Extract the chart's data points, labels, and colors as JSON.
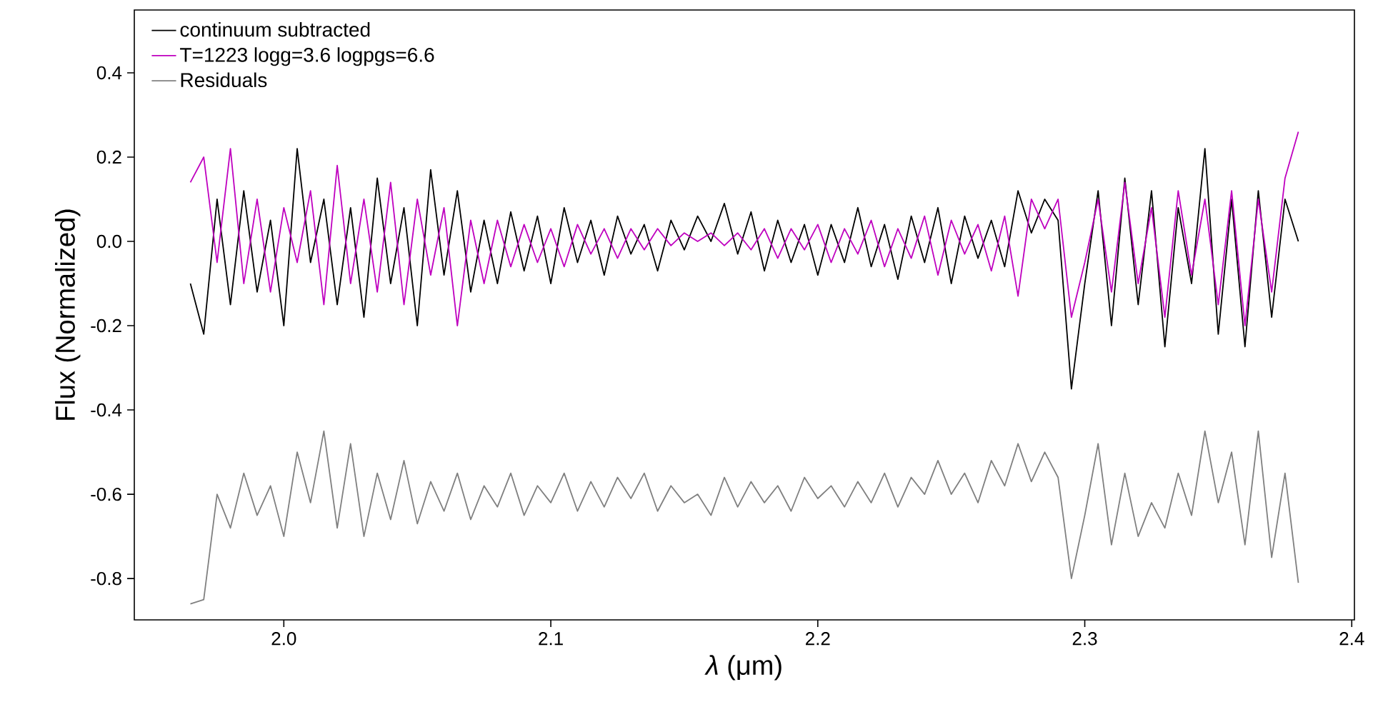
{
  "chart_data": {
    "type": "line",
    "xlabel": "*λ* (μm)",
    "ylabel": "Flux (Normalized)",
    "xlim": [
      1.944,
      2.401
    ],
    "ylim": [
      -0.898,
      0.549
    ],
    "xticks": [
      {
        "value": 2.0,
        "label": "2.0"
      },
      2.1,
      2.2,
      2.3,
      2.4
    ],
    "yticks": [
      -0.8,
      -0.6,
      -0.4,
      -0.2,
      {
        "value": 0.0,
        "label": "0.0"
      },
      0.2,
      0.4
    ],
    "legend": "top left",
    "x": [
      1.965,
      1.97,
      1.975,
      1.98,
      1.985,
      1.99,
      1.995,
      2.0,
      2.005,
      2.01,
      2.015,
      2.02,
      2.025,
      2.03,
      2.035,
      2.04,
      2.045,
      2.05,
      2.055,
      2.06,
      2.065,
      2.07,
      2.075,
      2.08,
      2.085,
      2.09,
      2.095,
      2.1,
      2.105,
      2.11,
      2.115,
      2.12,
      2.125,
      2.13,
      2.135,
      2.14,
      2.145,
      2.15,
      2.155,
      2.16,
      2.165,
      2.17,
      2.175,
      2.18,
      2.185,
      2.19,
      2.195,
      2.2,
      2.205,
      2.21,
      2.215,
      2.22,
      2.225,
      2.23,
      2.235,
      2.24,
      2.245,
      2.25,
      2.255,
      2.26,
      2.265,
      2.27,
      2.275,
      2.28,
      2.285,
      2.29,
      2.295,
      2.3,
      2.305,
      2.31,
      2.315,
      2.32,
      2.325,
      2.33,
      2.335,
      2.34,
      2.345,
      2.35,
      2.355,
      2.36,
      2.365,
      2.37,
      2.375,
      2.38
    ],
    "series": [
      {
        "name": "continuum subtracted",
        "color": "#000000",
        "values": [
          -0.1,
          -0.22,
          0.1,
          -0.15,
          0.12,
          -0.12,
          0.05,
          -0.2,
          0.22,
          -0.05,
          0.1,
          -0.15,
          0.08,
          -0.18,
          0.15,
          -0.1,
          0.08,
          -0.2,
          0.17,
          -0.08,
          0.12,
          -0.12,
          0.05,
          -0.1,
          0.07,
          -0.07,
          0.06,
          -0.1,
          0.08,
          -0.05,
          0.05,
          -0.08,
          0.06,
          -0.03,
          0.04,
          -0.07,
          0.05,
          -0.02,
          0.06,
          0.0,
          0.09,
          -0.03,
          0.07,
          -0.07,
          0.05,
          -0.05,
          0.04,
          -0.08,
          0.04,
          -0.05,
          0.08,
          -0.06,
          0.04,
          -0.09,
          0.06,
          -0.05,
          0.08,
          -0.1,
          0.06,
          -0.04,
          0.05,
          -0.06,
          0.12,
          0.02,
          0.1,
          0.05,
          -0.35,
          -0.1,
          0.12,
          -0.2,
          0.15,
          -0.15,
          0.12,
          -0.25,
          0.08,
          -0.1,
          0.22,
          -0.22,
          0.1,
          -0.25,
          0.12,
          -0.18,
          0.1,
          0.0
        ]
      },
      {
        "name": "T=1223 logg=3.6 logpgs=6.6",
        "color": "#bf00bf",
        "values": [
          0.14,
          0.2,
          -0.05,
          0.22,
          -0.1,
          0.1,
          -0.12,
          0.08,
          -0.05,
          0.12,
          -0.15,
          0.18,
          -0.1,
          0.1,
          -0.12,
          0.14,
          -0.15,
          0.1,
          -0.08,
          0.08,
          -0.2,
          0.05,
          -0.1,
          0.05,
          -0.06,
          0.04,
          -0.05,
          0.03,
          -0.06,
          0.04,
          -0.03,
          0.03,
          -0.04,
          0.03,
          -0.02,
          0.03,
          -0.01,
          0.02,
          0.0,
          0.02,
          -0.01,
          0.02,
          -0.02,
          0.03,
          -0.04,
          0.03,
          -0.02,
          0.04,
          -0.05,
          0.03,
          -0.03,
          0.05,
          -0.06,
          0.03,
          -0.04,
          0.06,
          -0.08,
          0.05,
          -0.03,
          0.04,
          -0.07,
          0.06,
          -0.13,
          0.1,
          0.03,
          0.1,
          -0.18,
          -0.05,
          0.1,
          -0.12,
          0.14,
          -0.1,
          0.08,
          -0.18,
          0.12,
          -0.08,
          0.1,
          -0.15,
          0.12,
          -0.2,
          0.1,
          -0.12,
          0.15,
          0.26
        ]
      },
      {
        "name": "Residuals",
        "color": "#808080",
        "values": [
          -0.86,
          -0.85,
          -0.6,
          -0.68,
          -0.55,
          -0.65,
          -0.58,
          -0.7,
          -0.5,
          -0.62,
          -0.45,
          -0.68,
          -0.48,
          -0.7,
          -0.55,
          -0.66,
          -0.52,
          -0.67,
          -0.57,
          -0.64,
          -0.55,
          -0.66,
          -0.58,
          -0.63,
          -0.55,
          -0.65,
          -0.58,
          -0.62,
          -0.55,
          -0.64,
          -0.57,
          -0.63,
          -0.56,
          -0.61,
          -0.55,
          -0.64,
          -0.58,
          -0.62,
          -0.6,
          -0.65,
          -0.56,
          -0.63,
          -0.57,
          -0.62,
          -0.58,
          -0.64,
          -0.56,
          -0.61,
          -0.58,
          -0.63,
          -0.57,
          -0.62,
          -0.55,
          -0.63,
          -0.56,
          -0.6,
          -0.52,
          -0.6,
          -0.55,
          -0.62,
          -0.52,
          -0.58,
          -0.48,
          -0.57,
          -0.5,
          -0.56,
          -0.8,
          -0.65,
          -0.48,
          -0.72,
          -0.55,
          -0.7,
          -0.62,
          -0.68,
          -0.55,
          -0.65,
          -0.45,
          -0.62,
          -0.5,
          -0.72,
          -0.45,
          -0.75,
          -0.55,
          -0.81
        ]
      }
    ]
  }
}
